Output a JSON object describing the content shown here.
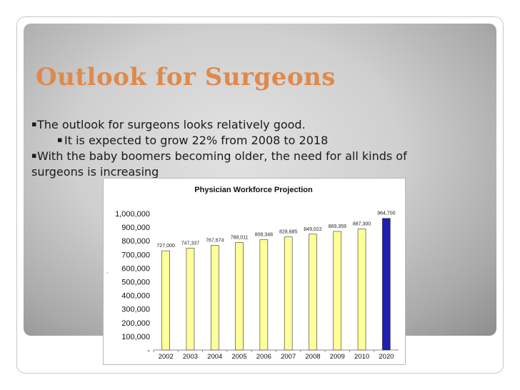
{
  "slide": {
    "title": "Outlook for Surgeons",
    "bullets": [
      {
        "level": 1,
        "text": "The outlook for surgeons looks relatively good."
      },
      {
        "level": 2,
        "text": "It is expected to grow 22% from 2008 to 2018"
      },
      {
        "level": 1,
        "text": "With the baby boomers becoming older, the need for all kinds of"
      },
      {
        "level": 0,
        "text": "surgeons is increasing"
      }
    ],
    "bullet_marker": "▪"
  },
  "chart_data": {
    "type": "bar",
    "title": "Physician Workforce Projection",
    "categories": [
      "2002",
      "2003",
      "2004",
      "2005",
      "2006",
      "2007",
      "2008",
      "2009",
      "2010",
      "2020"
    ],
    "values": [
      727000,
      747337,
      767674,
      788011,
      808348,
      828685,
      849022,
      869359,
      887300,
      964700
    ],
    "value_labels": [
      "727,000",
      "747,337",
      "767,674",
      "788,011",
      "808,348",
      "828,685",
      "849,022",
      "869,359",
      "887,300",
      "964,700"
    ],
    "y_ticks": [
      "-",
      "100,000",
      "200,000",
      "300,000",
      "400,000",
      "500,000",
      "600,000",
      "700,000",
      "800,000",
      "900,000",
      "1,000,000"
    ],
    "ylim": [
      0,
      1000000
    ],
    "colors": {
      "default": "#ffff99",
      "highlight": "#1f1fb4",
      "bar_stroke": "#333333"
    },
    "highlight_index": 9,
    "grid": false,
    "legend": "none"
  }
}
